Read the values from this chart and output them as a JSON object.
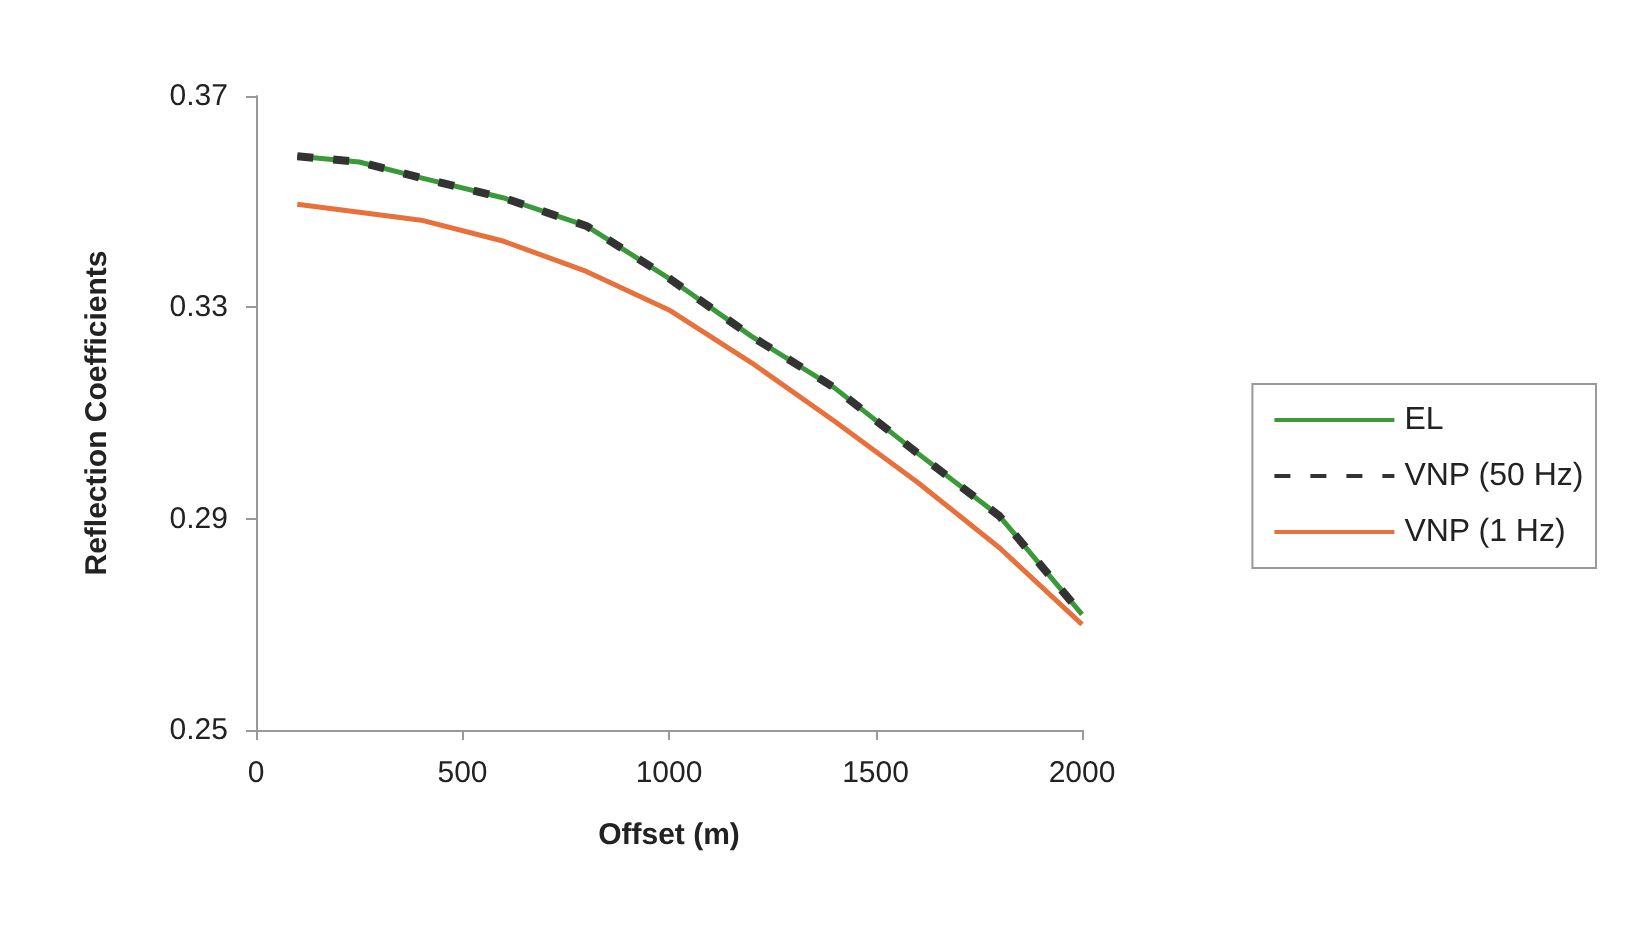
{
  "chart_data": {
    "type": "line",
    "xlabel": "Offset (m)",
    "ylabel": "Reflection Coefficients",
    "x": [
      100,
      250,
      400,
      600,
      800,
      1000,
      1200,
      1400,
      1600,
      1800,
      2000
    ],
    "series": [
      {
        "name": "EL",
        "color": "#3a9a3a",
        "line_style": "solid",
        "values": [
          0.3586,
          0.3575,
          0.3545,
          0.3507,
          0.3454,
          0.3355,
          0.3245,
          0.3148,
          0.3025,
          0.2905,
          0.2719
        ]
      },
      {
        "name": "VNP (50 Hz)",
        "color": "#333333",
        "line_style": "dashed",
        "values": [
          0.3586,
          0.3575,
          0.3545,
          0.3507,
          0.3454,
          0.3355,
          0.3245,
          0.3148,
          0.3025,
          0.2905,
          0.2719
        ]
      },
      {
        "name": "VNP (1 Hz)",
        "color": "#e8703a",
        "line_style": "solid",
        "values": [
          0.3495,
          0.348,
          0.3465,
          0.3425,
          0.3368,
          0.3295,
          0.3195,
          0.3085,
          0.297,
          0.2845,
          0.27
        ]
      }
    ],
    "xlim": [
      0,
      2000
    ],
    "xticks": [
      0,
      500,
      1000,
      1500,
      2000
    ],
    "ylim": [
      0.25,
      0.37
    ],
    "yticks": [
      0.25,
      0.29,
      0.33,
      0.37
    ],
    "grid": false,
    "legend": "right",
    "marker": "none"
  }
}
